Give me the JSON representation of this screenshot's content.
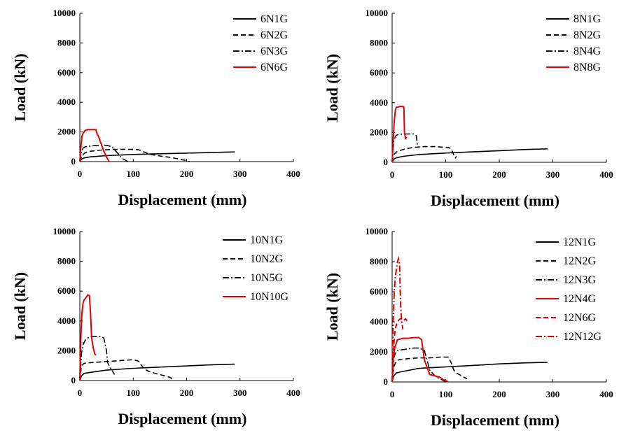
{
  "chart_data": [
    {
      "type": "line",
      "xlabel": "Displacement (mm)",
      "ylabel": "Load (kN)",
      "xlim": [
        0,
        400
      ],
      "ylim": [
        0,
        10000
      ],
      "xticks": [
        "0",
        "100",
        "200",
        "300",
        "400"
      ],
      "yticks": [
        "0",
        "2000",
        "4000",
        "6000",
        "8000",
        "10000"
      ],
      "grid": false,
      "legend": "top-right",
      "series": [
        {
          "name": "6N1G",
          "color": "#000000",
          "dash": "solid",
          "x": [
            0,
            3,
            8,
            20,
            50,
            100,
            150,
            200,
            250,
            290
          ],
          "y": [
            0,
            150,
            250,
            320,
            400,
            480,
            530,
            570,
            620,
            650
          ]
        },
        {
          "name": "6N2G",
          "color": "#000000",
          "dash": "dashed",
          "x": [
            0,
            4,
            10,
            20,
            40,
            60,
            80,
            100,
            110,
            130,
            150,
            170,
            185,
            200,
            205
          ],
          "y": [
            0,
            400,
            600,
            700,
            780,
            820,
            830,
            820,
            800,
            500,
            380,
            280,
            180,
            60,
            0
          ]
        },
        {
          "name": "6N3G",
          "color": "#000000",
          "dash": "dashdot",
          "x": [
            0,
            3,
            6,
            10,
            20,
            30,
            40,
            50,
            55,
            60,
            65,
            70,
            75,
            80,
            85,
            90
          ],
          "y": [
            0,
            700,
            900,
            1000,
            1050,
            1080,
            1100,
            1100,
            1050,
            1000,
            800,
            600,
            400,
            200,
            100,
            0
          ]
        },
        {
          "name": "6N6G",
          "color": "#e00000",
          "dash": "solid",
          "x": [
            0,
            2,
            4,
            6,
            8,
            10,
            15,
            20,
            25,
            28,
            30,
            32,
            35,
            40,
            45,
            50,
            55
          ],
          "y": [
            0,
            1000,
            1700,
            1900,
            2000,
            2100,
            2150,
            2150,
            2150,
            2150,
            2150,
            1900,
            1700,
            1200,
            700,
            300,
            0
          ]
        }
      ]
    },
    {
      "type": "line",
      "xlabel": "Displacement (mm)",
      "ylabel": "Load (kN)",
      "xlim": [
        0,
        400
      ],
      "ylim": [
        0,
        10000
      ],
      "xticks": [
        "0",
        "100",
        "200",
        "300",
        "400"
      ],
      "yticks": [
        "0",
        "2000",
        "4000",
        "6000",
        "8000",
        "10000"
      ],
      "grid": false,
      "legend": "top-right",
      "series": [
        {
          "name": "8N1G",
          "color": "#000000",
          "dash": "solid",
          "x": [
            0,
            3,
            8,
            20,
            50,
            100,
            150,
            200,
            250,
            290
          ],
          "y": [
            0,
            200,
            300,
            400,
            520,
            620,
            700,
            780,
            860,
            900
          ]
        },
        {
          "name": "8N2G",
          "color": "#000000",
          "dash": "dashed",
          "x": [
            0,
            3,
            8,
            15,
            25,
            40,
            60,
            80,
            100,
            105,
            110,
            113,
            115,
            118,
            120
          ],
          "y": [
            0,
            500,
            700,
            800,
            900,
            1000,
            1050,
            1050,
            1000,
            1000,
            900,
            700,
            500,
            300,
            400
          ]
        },
        {
          "name": "8N4G",
          "color": "#000000",
          "dash": "dashdot",
          "x": [
            0,
            3,
            6,
            10,
            20,
            30,
            40,
            45,
            47,
            50
          ],
          "y": [
            0,
            1400,
            1750,
            1850,
            1900,
            1900,
            1900,
            1800,
            1200,
            1000
          ]
        },
        {
          "name": "8N8G",
          "color": "#e00000",
          "dash": "solid",
          "x": [
            0,
            2,
            4,
            6,
            8,
            10,
            15,
            20,
            22,
            23,
            25,
            27
          ],
          "y": [
            0,
            1500,
            2800,
            3500,
            3700,
            3700,
            3750,
            3750,
            3700,
            2000,
            1600,
            1700
          ]
        }
      ]
    },
    {
      "type": "line",
      "xlabel": "Displacement (mm)",
      "ylabel": "Load (kN)",
      "xlim": [
        0,
        400
      ],
      "ylim": [
        0,
        10000
      ],
      "xticks": [
        "0",
        "100",
        "200",
        "300",
        "400"
      ],
      "yticks": [
        "0",
        "2000",
        "4000",
        "6000",
        "8000",
        "10000"
      ],
      "grid": false,
      "legend": "top-right",
      "series": [
        {
          "name": "10N1G",
          "color": "#000000",
          "dash": "solid",
          "x": [
            0,
            3,
            8,
            20,
            50,
            100,
            150,
            200,
            250,
            290
          ],
          "y": [
            0,
            300,
            480,
            550,
            700,
            820,
            900,
            980,
            1060,
            1100
          ]
        },
        {
          "name": "10N2G",
          "color": "#000000",
          "dash": "dashed",
          "x": [
            0,
            3,
            8,
            20,
            40,
            60,
            80,
            100,
            110,
            120,
            130,
            140,
            150,
            160,
            170,
            175
          ],
          "y": [
            0,
            1000,
            1150,
            1200,
            1250,
            1300,
            1350,
            1400,
            1300,
            800,
            600,
            500,
            400,
            300,
            200,
            0
          ]
        },
        {
          "name": "10N5G",
          "color": "#000000",
          "dash": "dashdot",
          "x": [
            0,
            3,
            6,
            10,
            15,
            20,
            30,
            40,
            45,
            50,
            52,
            55,
            60,
            65
          ],
          "y": [
            0,
            1800,
            2400,
            2700,
            2850,
            2950,
            2950,
            2950,
            2850,
            2000,
            1200,
            1000,
            700,
            400
          ]
        },
        {
          "name": "10N10G",
          "color": "#e00000",
          "dash": "solid",
          "x": [
            0,
            2,
            4,
            6,
            8,
            10,
            12,
            15,
            18,
            20,
            22,
            25,
            28,
            30
          ],
          "y": [
            0,
            3000,
            4500,
            5200,
            5400,
            5500,
            5600,
            5750,
            5700,
            4500,
            2900,
            2200,
            1800,
            1700
          ]
        }
      ]
    },
    {
      "type": "line",
      "xlabel": "Displacement (mm)",
      "ylabel": "Load (kN)",
      "xlim": [
        0,
        400
      ],
      "ylim": [
        0,
        10000
      ],
      "xticks": [
        "0",
        "100",
        "200",
        "300",
        "400"
      ],
      "yticks": [
        "0",
        "2000",
        "4000",
        "6000",
        "8000",
        "10000"
      ],
      "grid": false,
      "legend": "top-right",
      "series": [
        {
          "name": "12N1G",
          "color": "#000000",
          "dash": "solid",
          "x": [
            0,
            3,
            8,
            20,
            50,
            100,
            150,
            200,
            250,
            290
          ],
          "y": [
            0,
            400,
            600,
            700,
            900,
            1000,
            1100,
            1200,
            1270,
            1300
          ]
        },
        {
          "name": "12N2G",
          "color": "#000000",
          "dash": "dashed",
          "x": [
            0,
            3,
            8,
            15,
            30,
            50,
            70,
            90,
            105,
            110,
            115,
            120,
            130,
            140
          ],
          "y": [
            0,
            1000,
            1400,
            1500,
            1550,
            1600,
            1600,
            1650,
            1650,
            1300,
            800,
            600,
            400,
            200
          ]
        },
        {
          "name": "12N3G",
          "color": "#000000",
          "dash": "dashdot",
          "x": [
            0,
            3,
            6,
            10,
            20,
            30,
            40,
            50,
            60,
            65,
            70,
            80,
            90,
            100
          ],
          "y": [
            0,
            1600,
            1900,
            2100,
            2150,
            2200,
            2250,
            2250,
            2100,
            1500,
            800,
            400,
            200,
            0
          ]
        },
        {
          "name": "12N4G",
          "color": "#e00000",
          "dash": "solid",
          "x": [
            0,
            2,
            5,
            10,
            20,
            30,
            40,
            50,
            55,
            60,
            70,
            80,
            90,
            95,
            100,
            105
          ],
          "y": [
            0,
            1500,
            2300,
            2800,
            2900,
            2900,
            2950,
            2950,
            2800,
            1500,
            500,
            400,
            300,
            150,
            100,
            0
          ]
        },
        {
          "name": "12N6G",
          "color": "#e00000",
          "dash": "dashed",
          "x": [
            0,
            2,
            4,
            6,
            8,
            10,
            12,
            15,
            20,
            22,
            25,
            27,
            30
          ],
          "y": [
            0,
            1500,
            3000,
            3500,
            3800,
            4000,
            4100,
            4200,
            4200,
            4100,
            4200,
            4100,
            4200
          ]
        },
        {
          "name": "12N12G",
          "color": "#e00000",
          "dash": "dashdot",
          "x": [
            0,
            2,
            4,
            6,
            8,
            10,
            12,
            14,
            16,
            18,
            20
          ],
          "y": [
            0,
            4000,
            6000,
            7000,
            7500,
            8000,
            8200,
            7800,
            5000,
            4000,
            3500
          ]
        }
      ]
    }
  ]
}
